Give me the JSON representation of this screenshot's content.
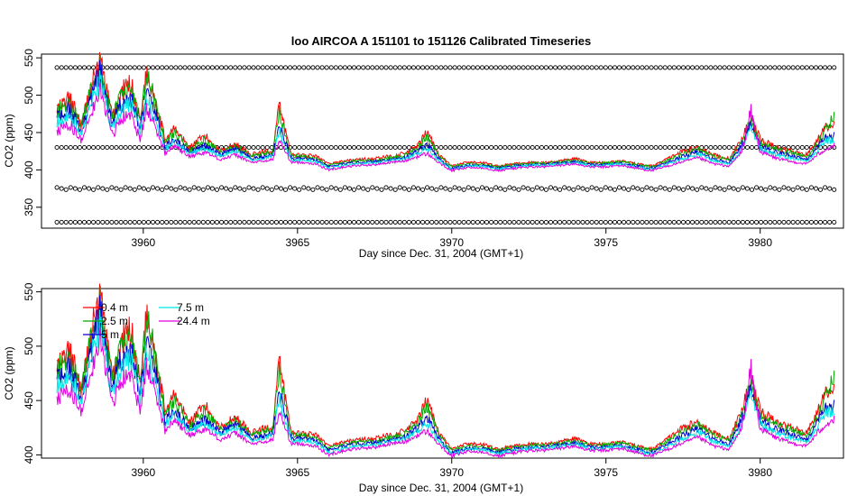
{
  "title": "loo   AIRCOA  A    151101  to  151126   Calibrated Timeseries",
  "chart_data": [
    {
      "type": "line",
      "title": "loo   AIRCOA  A    151101  to  151126   Calibrated Timeseries",
      "xlabel": "Day since Dec. 31, 2004 (GMT+1)",
      "ylabel": "CO2 (ppm)",
      "xlim": [
        3956.7,
        3982.7
      ],
      "ylim": [
        322,
        555
      ],
      "xticks": [
        "3960",
        "3965",
        "3970",
        "3975",
        "3980"
      ],
      "yticks": [
        "350",
        "400",
        "450",
        "500",
        "550"
      ],
      "x_range_data": [
        3957.2,
        3982.4
      ],
      "calibration_levels": [
        537,
        430,
        375,
        330
      ],
      "series": [
        {
          "name": "0.4 m",
          "color": "#ff0000",
          "x": [
            3957.2,
            3957.6,
            3958.0,
            3958.3,
            3958.6,
            3959.0,
            3959.3,
            3959.6,
            3959.9,
            3960.1,
            3960.4,
            3960.7,
            3961.0,
            3961.5,
            3962.0,
            3962.5,
            3963.0,
            3963.5,
            3964.0,
            3964.2,
            3964.4,
            3964.8,
            3965.2,
            3965.6,
            3966.0,
            3966.5,
            3967.0,
            3967.5,
            3968.0,
            3968.5,
            3968.9,
            3969.2,
            3969.6,
            3970.0,
            3970.5,
            3971.0,
            3971.5,
            3972.0,
            3972.5,
            3973.0,
            3973.5,
            3974.0,
            3974.5,
            3975.0,
            3975.5,
            3976.0,
            3976.5,
            3977.0,
            3977.5,
            3978.0,
            3978.5,
            3979.0,
            3979.4,
            3979.7,
            3980.0,
            3980.5,
            3981.0,
            3981.5,
            3981.8,
            3982.1,
            3982.4
          ],
          "values": [
            480,
            495,
            460,
            510,
            545,
            470,
            505,
            515,
            465,
            530,
            495,
            440,
            455,
            430,
            445,
            425,
            435,
            420,
            425,
            425,
            485,
            420,
            420,
            418,
            408,
            412,
            414,
            415,
            418,
            422,
            432,
            450,
            420,
            405,
            410,
            410,
            405,
            408,
            410,
            410,
            412,
            415,
            410,
            410,
            412,
            408,
            405,
            415,
            425,
            430,
            420,
            415,
            440,
            470,
            440,
            430,
            425,
            420,
            435,
            455,
            460
          ]
        },
        {
          "name": "2.5 m",
          "color": "#00aa00",
          "x": [
            3957.2,
            3957.6,
            3958.0,
            3958.3,
            3958.6,
            3959.0,
            3959.3,
            3959.6,
            3959.9,
            3960.1,
            3960.4,
            3960.7,
            3961.0,
            3961.5,
            3962.0,
            3962.5,
            3963.0,
            3963.5,
            3964.0,
            3964.2,
            3964.4,
            3964.8,
            3965.2,
            3965.6,
            3966.0,
            3966.5,
            3967.0,
            3967.5,
            3968.0,
            3968.5,
            3968.9,
            3969.2,
            3969.6,
            3970.0,
            3970.5,
            3971.0,
            3971.5,
            3972.0,
            3972.5,
            3973.0,
            3973.5,
            3974.0,
            3974.5,
            3975.0,
            3975.5,
            3976.0,
            3976.5,
            3977.0,
            3977.5,
            3978.0,
            3978.5,
            3979.0,
            3979.4,
            3979.7,
            3980.0,
            3980.5,
            3981.0,
            3981.5,
            3981.8,
            3982.1,
            3982.4
          ],
          "values": [
            478,
            490,
            458,
            505,
            540,
            468,
            500,
            510,
            462,
            525,
            490,
            437,
            450,
            428,
            440,
            423,
            432,
            418,
            422,
            423,
            478,
            418,
            418,
            416,
            406,
            410,
            412,
            413,
            416,
            420,
            430,
            445,
            418,
            404,
            408,
            408,
            404,
            407,
            409,
            409,
            411,
            413,
            409,
            409,
            411,
            407,
            404,
            413,
            422,
            428,
            418,
            413,
            437,
            465,
            437,
            428,
            423,
            418,
            432,
            452,
            470
          ]
        },
        {
          "name": "5 m",
          "color": "#0000cc",
          "x": [
            3957.2,
            3957.6,
            3958.0,
            3958.3,
            3958.6,
            3959.0,
            3959.3,
            3959.6,
            3959.9,
            3960.1,
            3960.4,
            3960.7,
            3961.0,
            3961.5,
            3962.0,
            3962.5,
            3963.0,
            3963.5,
            3964.0,
            3964.2,
            3964.4,
            3964.8,
            3965.2,
            3965.6,
            3966.0,
            3966.5,
            3967.0,
            3967.5,
            3968.0,
            3968.5,
            3968.9,
            3969.2,
            3969.6,
            3970.0,
            3970.5,
            3971.0,
            3971.5,
            3972.0,
            3972.5,
            3973.0,
            3973.5,
            3974.0,
            3974.5,
            3975.0,
            3975.5,
            3976.0,
            3976.5,
            3977.0,
            3977.5,
            3978.0,
            3978.5,
            3979.0,
            3979.4,
            3979.7,
            3980.0,
            3980.5,
            3981.0,
            3981.5,
            3981.8,
            3982.1,
            3982.4
          ],
          "values": [
            470,
            480,
            452,
            495,
            530,
            460,
            490,
            495,
            455,
            505,
            475,
            430,
            442,
            424,
            432,
            420,
            428,
            415,
            418,
            420,
            460,
            415,
            415,
            413,
            404,
            408,
            410,
            411,
            414,
            417,
            425,
            435,
            414,
            402,
            406,
            406,
            402,
            405,
            407,
            407,
            409,
            411,
            407,
            407,
            409,
            405,
            402,
            410,
            418,
            424,
            414,
            410,
            432,
            460,
            432,
            424,
            419,
            414,
            426,
            442,
            445
          ]
        },
        {
          "name": "7.5 m",
          "color": "#00e5e5",
          "x": [
            3957.2,
            3957.6,
            3958.0,
            3958.3,
            3958.6,
            3959.0,
            3959.3,
            3959.6,
            3959.9,
            3960.1,
            3960.4,
            3960.7,
            3961.0,
            3961.5,
            3962.0,
            3962.5,
            3963.0,
            3963.5,
            3964.0,
            3964.2,
            3964.4,
            3964.8,
            3965.2,
            3965.6,
            3966.0,
            3966.5,
            3967.0,
            3967.5,
            3968.0,
            3968.5,
            3968.9,
            3969.2,
            3969.6,
            3970.0,
            3970.5,
            3971.0,
            3971.5,
            3972.0,
            3972.5,
            3973.0,
            3973.5,
            3974.0,
            3974.5,
            3975.0,
            3975.5,
            3976.0,
            3976.5,
            3977.0,
            3977.5,
            3978.0,
            3978.5,
            3979.0,
            3979.4,
            3979.7,
            3980.0,
            3980.5,
            3981.0,
            3981.5,
            3981.8,
            3982.1,
            3982.4
          ],
          "values": [
            465,
            475,
            448,
            490,
            520,
            455,
            483,
            488,
            450,
            495,
            468,
            427,
            438,
            422,
            429,
            418,
            425,
            413,
            416,
            418,
            452,
            413,
            413,
            411,
            402,
            406,
            408,
            409,
            412,
            415,
            422,
            430,
            412,
            401,
            405,
            405,
            401,
            404,
            406,
            406,
            408,
            410,
            406,
            406,
            408,
            404,
            401,
            408,
            415,
            421,
            412,
            408,
            428,
            455,
            428,
            421,
            416,
            412,
            423,
            438,
            440
          ]
        },
        {
          "name": "24.4 m",
          "color": "#e000e0",
          "x": [
            3957.2,
            3957.6,
            3958.0,
            3958.3,
            3958.6,
            3959.0,
            3959.3,
            3959.6,
            3959.9,
            3960.1,
            3960.4,
            3960.7,
            3961.0,
            3961.5,
            3962.0,
            3962.5,
            3963.0,
            3963.5,
            3964.0,
            3964.2,
            3964.4,
            3964.8,
            3965.2,
            3965.6,
            3966.0,
            3966.5,
            3967.0,
            3967.5,
            3968.0,
            3968.5,
            3968.9,
            3969.2,
            3969.6,
            3970.0,
            3970.5,
            3971.0,
            3971.5,
            3972.0,
            3972.5,
            3973.0,
            3973.5,
            3974.0,
            3974.5,
            3975.0,
            3975.5,
            3976.0,
            3976.5,
            3977.0,
            3977.5,
            3978.0,
            3978.5,
            3979.0,
            3979.4,
            3979.7,
            3980.0,
            3980.5,
            3981.0,
            3981.5,
            3981.8,
            3982.1,
            3982.4
          ],
          "values": [
            452,
            462,
            440,
            478,
            510,
            445,
            470,
            472,
            442,
            480,
            458,
            422,
            432,
            418,
            424,
            414,
            420,
            410,
            412,
            414,
            440,
            410,
            410,
            408,
            400,
            404,
            406,
            407,
            410,
            412,
            418,
            422,
            409,
            399,
            403,
            403,
            399,
            402,
            404,
            404,
            406,
            408,
            404,
            404,
            406,
            402,
            399,
            405,
            411,
            416,
            408,
            405,
            424,
            478,
            424,
            416,
            411,
            408,
            418,
            428,
            432
          ]
        }
      ]
    },
    {
      "type": "line",
      "title": "",
      "xlabel": "Day since Dec. 31, 2004 (GMT+1)",
      "ylabel": "CO2 (ppm)",
      "xlim": [
        3956.7,
        3982.7
      ],
      "ylim": [
        397,
        553
      ],
      "xticks": [
        "3960",
        "3965",
        "3970",
        "3975",
        "3980"
      ],
      "yticks": [
        "400",
        "450",
        "500",
        "550"
      ],
      "legend": {
        "position": "top-left",
        "entries": [
          "0.4 m",
          "2.5 m",
          "5 m",
          "7.5 m",
          "24.4 m"
        ]
      },
      "series_ref": "same as chart 1 series, calibration levels excluded"
    }
  ]
}
